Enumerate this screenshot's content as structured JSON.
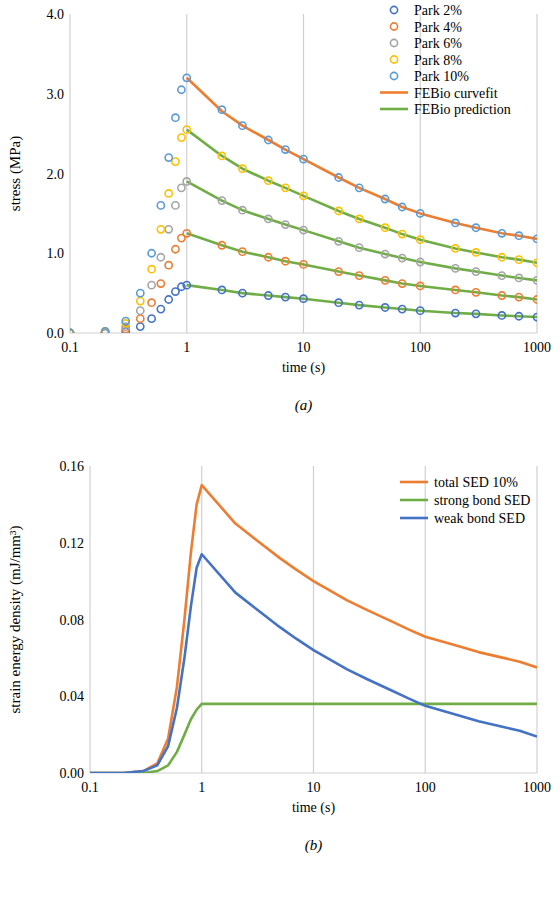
{
  "chart_data": [
    {
      "type": "line",
      "caption": "(a)",
      "x_label": "time (s)",
      "y_label": "stress (MPa)",
      "log": "x",
      "grid": true,
      "legend": "upper right",
      "xlim": [
        0.1,
        1000
      ],
      "xticks": [
        0.1,
        1,
        10,
        100,
        1000
      ],
      "ylim": [
        0,
        4
      ],
      "yticks": [
        {
          "value": 0,
          "label": "0.0"
        },
        {
          "value": 1,
          "label": "1.0"
        },
        {
          "value": 2,
          "label": "2.0"
        },
        {
          "value": 3,
          "label": "3.0"
        },
        {
          "value": 4,
          "label": "4.0"
        }
      ],
      "series": [
        {
          "name": "Park 2%",
          "type": "scatter",
          "marker": "circle",
          "color": "#4472c4",
          "x": [
            0.1,
            0.2,
            0.3,
            0.4,
            0.5,
            0.6,
            0.7,
            0.8,
            0.9,
            1,
            2,
            3,
            5,
            7,
            10,
            20,
            30,
            50,
            70,
            100,
            200,
            300,
            500,
            700,
            1000
          ],
          "values": [
            0,
            0,
            0.02,
            0.08,
            0.18,
            0.3,
            0.42,
            0.52,
            0.58,
            0.6,
            0.54,
            0.5,
            0.47,
            0.45,
            0.43,
            0.38,
            0.35,
            0.32,
            0.3,
            0.28,
            0.25,
            0.24,
            0.22,
            0.21,
            0.2
          ]
        },
        {
          "name": "Park 4%",
          "type": "scatter",
          "marker": "circle",
          "color": "#ed7d31",
          "x": [
            0.1,
            0.2,
            0.3,
            0.4,
            0.5,
            0.6,
            0.7,
            0.8,
            0.9,
            1,
            2,
            3,
            5,
            7,
            10,
            20,
            30,
            50,
            70,
            100,
            200,
            300,
            500,
            700,
            1000
          ],
          "values": [
            0,
            0.01,
            0.05,
            0.18,
            0.38,
            0.62,
            0.85,
            1.05,
            1.19,
            1.25,
            1.1,
            1.02,
            0.95,
            0.9,
            0.86,
            0.77,
            0.72,
            0.66,
            0.62,
            0.59,
            0.54,
            0.51,
            0.47,
            0.45,
            0.42
          ]
        },
        {
          "name": "Park 6%",
          "type": "scatter",
          "marker": "circle",
          "color": "#a5a5a5",
          "x": [
            0.1,
            0.2,
            0.3,
            0.4,
            0.5,
            0.6,
            0.7,
            0.8,
            0.9,
            1,
            2,
            3,
            5,
            7,
            10,
            20,
            30,
            50,
            70,
            100,
            200,
            300,
            500,
            700,
            1000
          ],
          "values": [
            0,
            0.01,
            0.08,
            0.28,
            0.6,
            0.95,
            1.3,
            1.6,
            1.82,
            1.9,
            1.66,
            1.54,
            1.43,
            1.36,
            1.29,
            1.15,
            1.07,
            0.99,
            0.94,
            0.89,
            0.81,
            0.77,
            0.72,
            0.69,
            0.66
          ]
        },
        {
          "name": "Park 8%",
          "type": "scatter",
          "marker": "circle",
          "color": "#ffc000",
          "x": [
            0.1,
            0.2,
            0.3,
            0.4,
            0.5,
            0.6,
            0.7,
            0.8,
            0.9,
            1,
            2,
            3,
            5,
            7,
            10,
            20,
            30,
            50,
            70,
            100,
            200,
            300,
            500,
            700,
            1000
          ],
          "values": [
            0,
            0.02,
            0.12,
            0.4,
            0.8,
            1.3,
            1.75,
            2.15,
            2.45,
            2.55,
            2.22,
            2.06,
            1.91,
            1.82,
            1.72,
            1.53,
            1.43,
            1.32,
            1.24,
            1.17,
            1.06,
            1.01,
            0.95,
            0.92,
            0.88
          ]
        },
        {
          "name": "Park 10%",
          "type": "scatter",
          "marker": "circle",
          "color": "#5b9bd5",
          "x": [
            0.1,
            0.2,
            0.3,
            0.4,
            0.5,
            0.6,
            0.7,
            0.8,
            0.9,
            1,
            2,
            3,
            5,
            7,
            10,
            20,
            30,
            50,
            70,
            100,
            200,
            300,
            500,
            700,
            1000
          ],
          "values": [
            0,
            0.02,
            0.15,
            0.5,
            1.0,
            1.6,
            2.2,
            2.7,
            3.05,
            3.2,
            2.8,
            2.6,
            2.42,
            2.3,
            2.18,
            1.95,
            1.82,
            1.68,
            1.58,
            1.5,
            1.38,
            1.32,
            1.25,
            1.22,
            1.18
          ]
        },
        {
          "name": "FEBio curvefit",
          "type": "line",
          "line_style": "solid",
          "color": "#ed7d31",
          "x": [
            1,
            2,
            3,
            5,
            7,
            10,
            20,
            30,
            50,
            70,
            100,
            200,
            300,
            500,
            700,
            1000
          ],
          "values": [
            3.2,
            2.78,
            2.6,
            2.42,
            2.3,
            2.18,
            1.95,
            1.82,
            1.68,
            1.58,
            1.5,
            1.38,
            1.32,
            1.25,
            1.22,
            1.18
          ]
        },
        {
          "name": "FEBio prediction",
          "type": "line",
          "line_style": "solid",
          "color": "#70ad47",
          "x": [
            1,
            2,
            3,
            5,
            7,
            10,
            20,
            30,
            50,
            70,
            100,
            200,
            300,
            500,
            700,
            1000,
            null,
            1,
            2,
            3,
            5,
            7,
            10,
            20,
            30,
            50,
            70,
            100,
            200,
            300,
            500,
            700,
            1000,
            null,
            1,
            2,
            3,
            5,
            7,
            10,
            20,
            30,
            50,
            70,
            100,
            200,
            300,
            500,
            700,
            1000,
            null,
            1,
            2,
            3,
            5,
            7,
            10,
            20,
            30,
            50,
            70,
            100,
            200,
            300,
            500,
            700,
            1000
          ],
          "values": [
            2.55,
            2.22,
            2.06,
            1.91,
            1.82,
            1.72,
            1.53,
            1.43,
            1.32,
            1.24,
            1.17,
            1.06,
            1.01,
            0.95,
            0.92,
            0.88,
            null,
            1.9,
            1.66,
            1.54,
            1.43,
            1.36,
            1.29,
            1.15,
            1.07,
            0.99,
            0.94,
            0.89,
            0.81,
            0.77,
            0.72,
            0.69,
            0.66,
            null,
            1.25,
            1.1,
            1.02,
            0.95,
            0.9,
            0.86,
            0.77,
            0.72,
            0.66,
            0.62,
            0.59,
            0.54,
            0.51,
            0.47,
            0.45,
            0.42,
            null,
            0.6,
            0.54,
            0.5,
            0.47,
            0.45,
            0.43,
            0.38,
            0.35,
            0.32,
            0.3,
            0.28,
            0.25,
            0.24,
            0.22,
            0.21,
            0.2
          ]
        }
      ]
    },
    {
      "type": "line",
      "caption": "(b)",
      "x_label": "time (s)",
      "y_label": "strain energy density (mJ/mm³)",
      "log": "x",
      "grid": true,
      "legend": "upper right",
      "xlim": [
        0.1,
        1000
      ],
      "xticks": [
        0.1,
        1,
        10,
        100,
        1000
      ],
      "ylim": [
        0,
        0.16
      ],
      "yticks": [
        {
          "value": 0,
          "label": "0.00"
        },
        {
          "value": 0.04,
          "label": "0.04"
        },
        {
          "value": 0.08,
          "label": "0.08"
        },
        {
          "value": 0.12,
          "label": "0.12"
        },
        {
          "value": 0.16,
          "label": "0.16"
        }
      ],
      "series": [
        {
          "name": "total SED 10%",
          "type": "line",
          "line_style": "solid",
          "color": "#ed7d31",
          "x": [
            0.1,
            0.2,
            0.3,
            0.4,
            0.5,
            0.6,
            0.7,
            0.8,
            0.9,
            1,
            2,
            3,
            5,
            7,
            10,
            20,
            30,
            50,
            70,
            100,
            200,
            300,
            500,
            700,
            1000
          ],
          "values": [
            0,
            0,
            0.001,
            0.005,
            0.018,
            0.045,
            0.08,
            0.115,
            0.14,
            0.15,
            0.13,
            0.122,
            0.112,
            0.106,
            0.1,
            0.09,
            0.085,
            0.079,
            0.075,
            0.071,
            0.066,
            0.063,
            0.06,
            0.058,
            0.055
          ]
        },
        {
          "name": "strong bond SED",
          "type": "line",
          "line_style": "solid",
          "color": "#70ad47",
          "x": [
            0.1,
            0.2,
            0.3,
            0.4,
            0.5,
            0.6,
            0.7,
            0.8,
            0.9,
            1,
            2,
            3,
            5,
            7,
            10,
            20,
            30,
            50,
            70,
            100,
            200,
            300,
            500,
            700,
            1000
          ],
          "values": [
            0,
            0,
            0,
            0.001,
            0.004,
            0.011,
            0.02,
            0.028,
            0.033,
            0.036,
            0.036,
            0.036,
            0.036,
            0.036,
            0.036,
            0.036,
            0.036,
            0.036,
            0.036,
            0.036,
            0.036,
            0.036,
            0.036,
            0.036,
            0.036
          ]
        },
        {
          "name": "weak bond SED",
          "type": "line",
          "line_style": "solid",
          "color": "#4472c4",
          "x": [
            0.1,
            0.2,
            0.3,
            0.4,
            0.5,
            0.6,
            0.7,
            0.8,
            0.9,
            1,
            2,
            3,
            5,
            7,
            10,
            20,
            30,
            50,
            70,
            100,
            200,
            300,
            500,
            700,
            1000
          ],
          "values": [
            0,
            0,
            0.001,
            0.004,
            0.014,
            0.034,
            0.06,
            0.087,
            0.107,
            0.114,
            0.094,
            0.086,
            0.076,
            0.07,
            0.064,
            0.054,
            0.049,
            0.043,
            0.039,
            0.035,
            0.03,
            0.027,
            0.024,
            0.022,
            0.019
          ]
        }
      ]
    }
  ]
}
